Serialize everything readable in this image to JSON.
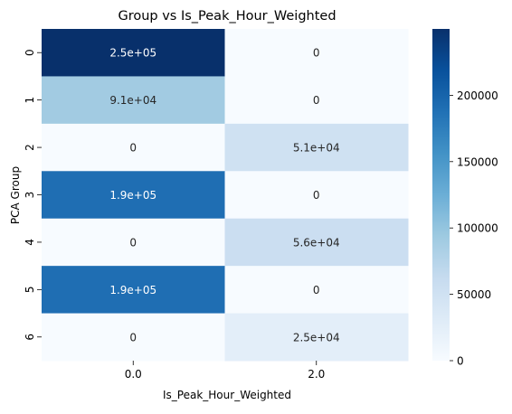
{
  "chart_data": {
    "type": "heatmap",
    "title": "Group vs Is_Peak_Hour_Weighted",
    "xlabel": "Is_Peak_Hour_Weighted",
    "ylabel": "PCA Group",
    "x_categories": [
      "0.0",
      "2.0"
    ],
    "y_categories": [
      "0",
      "1",
      "2",
      "3",
      "4",
      "5",
      "6"
    ],
    "values": [
      [
        250000,
        0
      ],
      [
        91000,
        0
      ],
      [
        0,
        51000
      ],
      [
        190000,
        0
      ],
      [
        0,
        56000
      ],
      [
        190000,
        0
      ],
      [
        0,
        25000
      ]
    ],
    "annotations": [
      [
        "2.5e+05",
        "0"
      ],
      [
        "9.1e+04",
        "0"
      ],
      [
        "0",
        "5.1e+04"
      ],
      [
        "1.9e+05",
        "0"
      ],
      [
        "0",
        "5.6e+04"
      ],
      [
        "1.9e+05",
        "0"
      ],
      [
        "0",
        "2.5e+04"
      ]
    ],
    "colormap": "Blues",
    "color_range": [
      0,
      250000
    ],
    "colorbar_ticks": [
      "0",
      "50000",
      "100000",
      "150000",
      "200000"
    ],
    "colorbar_tick_values": [
      0,
      50000,
      100000,
      150000,
      200000
    ]
  }
}
